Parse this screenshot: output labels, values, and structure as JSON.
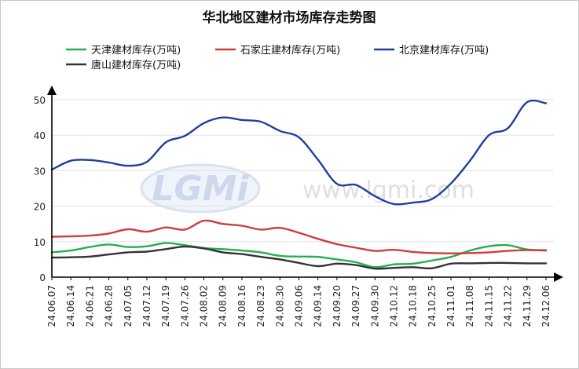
{
  "chart_data": {
    "type": "line",
    "title": "华北地区建材市场库存走势图",
    "xlabel": "",
    "ylabel": "",
    "ylim": [
      0,
      50
    ],
    "yticks": [
      0,
      10,
      20,
      30,
      40,
      50
    ],
    "grid": "horizontal",
    "legend_position": "top",
    "x": [
      "24.06.07",
      "24.06.14",
      "24.06.21",
      "24.06.28",
      "24.07.05",
      "24.07.12",
      "24.07.19",
      "24.07.26",
      "24.08.02",
      "24.08.09",
      "24.08.16",
      "24.08.23",
      "24.08.30",
      "24.09.06",
      "24.09.14",
      "24.09.20",
      "24.09.27",
      "24.09.30",
      "24.10.12",
      "24.10.18",
      "24.10.25",
      "24.11.01",
      "24.11.08",
      "24.11.15",
      "24.11.22",
      "24.11.29",
      "24.12.06"
    ],
    "series": [
      {
        "name": "天津建材库存(万吨)",
        "color": "#22b14c",
        "values": [
          7.0,
          7.5,
          8.5,
          9.2,
          8.5,
          8.7,
          9.6,
          9.0,
          8.2,
          7.9,
          7.5,
          7.0,
          6.0,
          5.8,
          5.7,
          5.0,
          4.2,
          2.8,
          3.6,
          3.8,
          4.7,
          5.7,
          7.5,
          8.7,
          9.0,
          7.8,
          7.6
        ]
      },
      {
        "name": "石家庄建材库存(万吨)",
        "color": "#d13c3c",
        "values": [
          11.4,
          11.5,
          11.7,
          12.3,
          13.5,
          12.8,
          14.0,
          13.4,
          15.9,
          15.0,
          14.5,
          13.4,
          13.9,
          12.5,
          10.8,
          9.3,
          8.3,
          7.4,
          7.7,
          7.1,
          6.8,
          6.7,
          6.8,
          7.0,
          7.4,
          7.6,
          7.5
        ]
      },
      {
        "name": "北京建材库存(万吨)",
        "color": "#1f3fa0",
        "values": [
          30.3,
          32.8,
          33.0,
          32.3,
          31.4,
          32.5,
          38.0,
          39.8,
          43.4,
          45.0,
          44.3,
          43.8,
          41.2,
          39.4,
          33.1,
          26.3,
          26.0,
          22.8,
          20.6,
          21.0,
          22.0,
          26.4,
          32.8,
          40.0,
          42.0,
          49.3,
          49.0
        ]
      },
      {
        "name": "唐山建材库存(万吨)",
        "color": "#333333",
        "values": [
          5.5,
          5.6,
          5.8,
          6.4,
          7.0,
          7.2,
          7.9,
          8.6,
          8.1,
          7.0,
          6.5,
          5.7,
          5.0,
          4.0,
          3.1,
          3.8,
          3.4,
          2.4,
          2.6,
          2.8,
          2.5,
          3.8,
          3.9,
          4.0,
          4.0,
          3.9,
          3.9
        ]
      }
    ]
  },
  "colors": {
    "axis": "#000000",
    "grid": "#e2e2e2",
    "frame": "#c8c8c8"
  },
  "watermark": {
    "logo_text": "LGMi",
    "url_text": "www.lgmi.com"
  }
}
